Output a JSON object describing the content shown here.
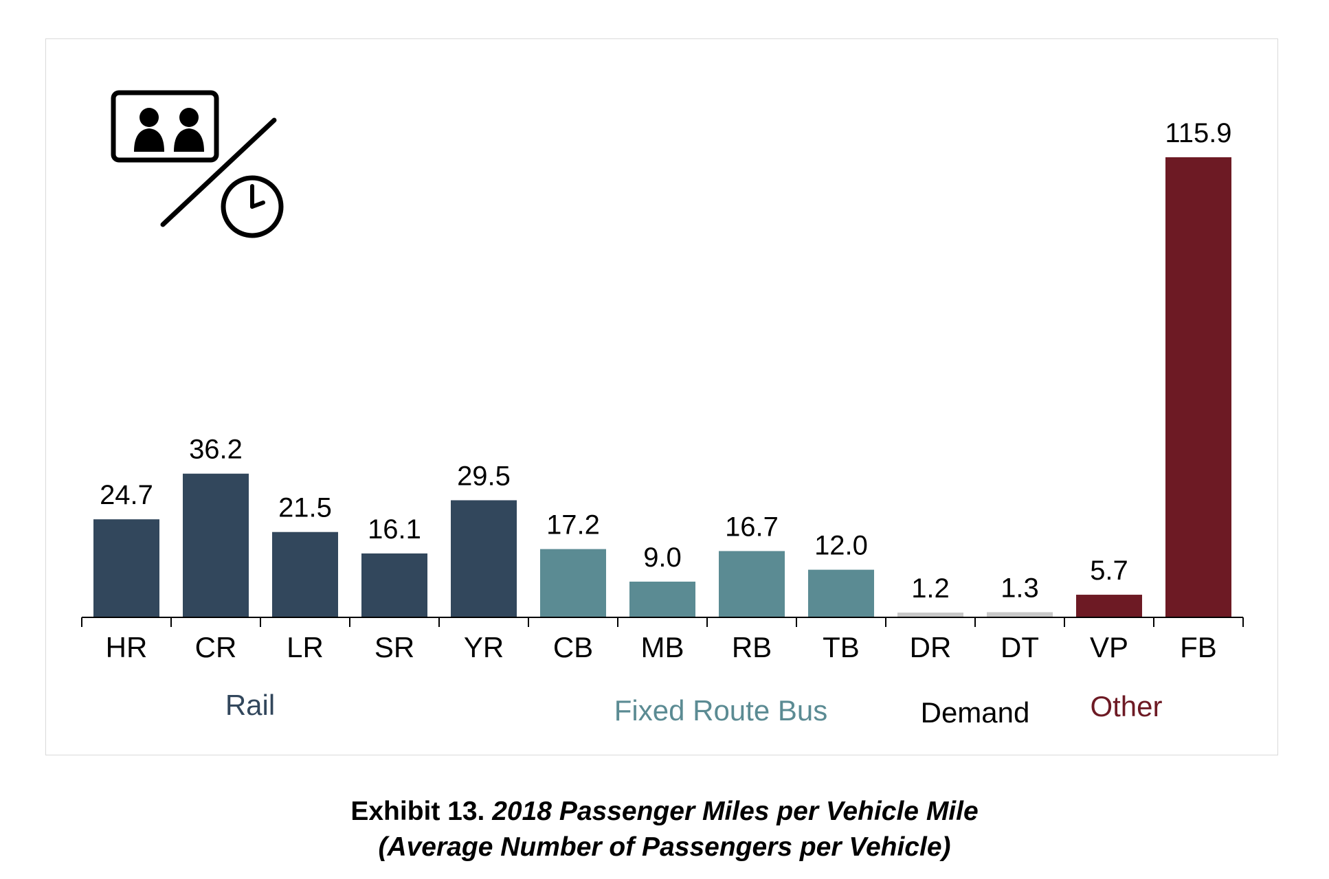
{
  "chart_data": {
    "type": "bar",
    "categories": [
      "HR",
      "CR",
      "LR",
      "SR",
      "YR",
      "CB",
      "MB",
      "RB",
      "TB",
      "DR",
      "DT",
      "VP",
      "FB"
    ],
    "values": [
      24.7,
      36.2,
      21.5,
      16.1,
      29.5,
      17.2,
      9.0,
      16.7,
      12.0,
      1.2,
      1.3,
      5.7,
      115.9
    ],
    "value_labels": [
      "24.7",
      "36.2",
      "21.5",
      "16.1",
      "29.5",
      "17.2",
      "9.0",
      "16.7",
      "12.0",
      "1.2",
      "1.3",
      "5.7",
      "115.9"
    ],
    "groups": [
      {
        "name": "Rail",
        "categories": [
          "HR",
          "CR",
          "LR",
          "SR",
          "YR"
        ],
        "color": "#32475c"
      },
      {
        "name": "Fixed Route Bus",
        "categories": [
          "CB",
          "MB",
          "RB",
          "TB"
        ],
        "color": "#5b8b93"
      },
      {
        "name": "Demand",
        "categories": [
          "DR",
          "DT"
        ],
        "color": "#c8c8c8",
        "label_color": "#000000"
      },
      {
        "name": "Other",
        "categories": [
          "VP",
          "FB"
        ],
        "color": "#6d1a24"
      }
    ],
    "ylim": [
      0,
      130
    ],
    "grid": false,
    "icon": "passengers-per-time-icon"
  },
  "caption": {
    "prefix": "Exhibit 13. ",
    "line1": "2018 Passenger Miles per Vehicle Mile",
    "line2": "(Average Number of Passengers per Vehicle)"
  }
}
